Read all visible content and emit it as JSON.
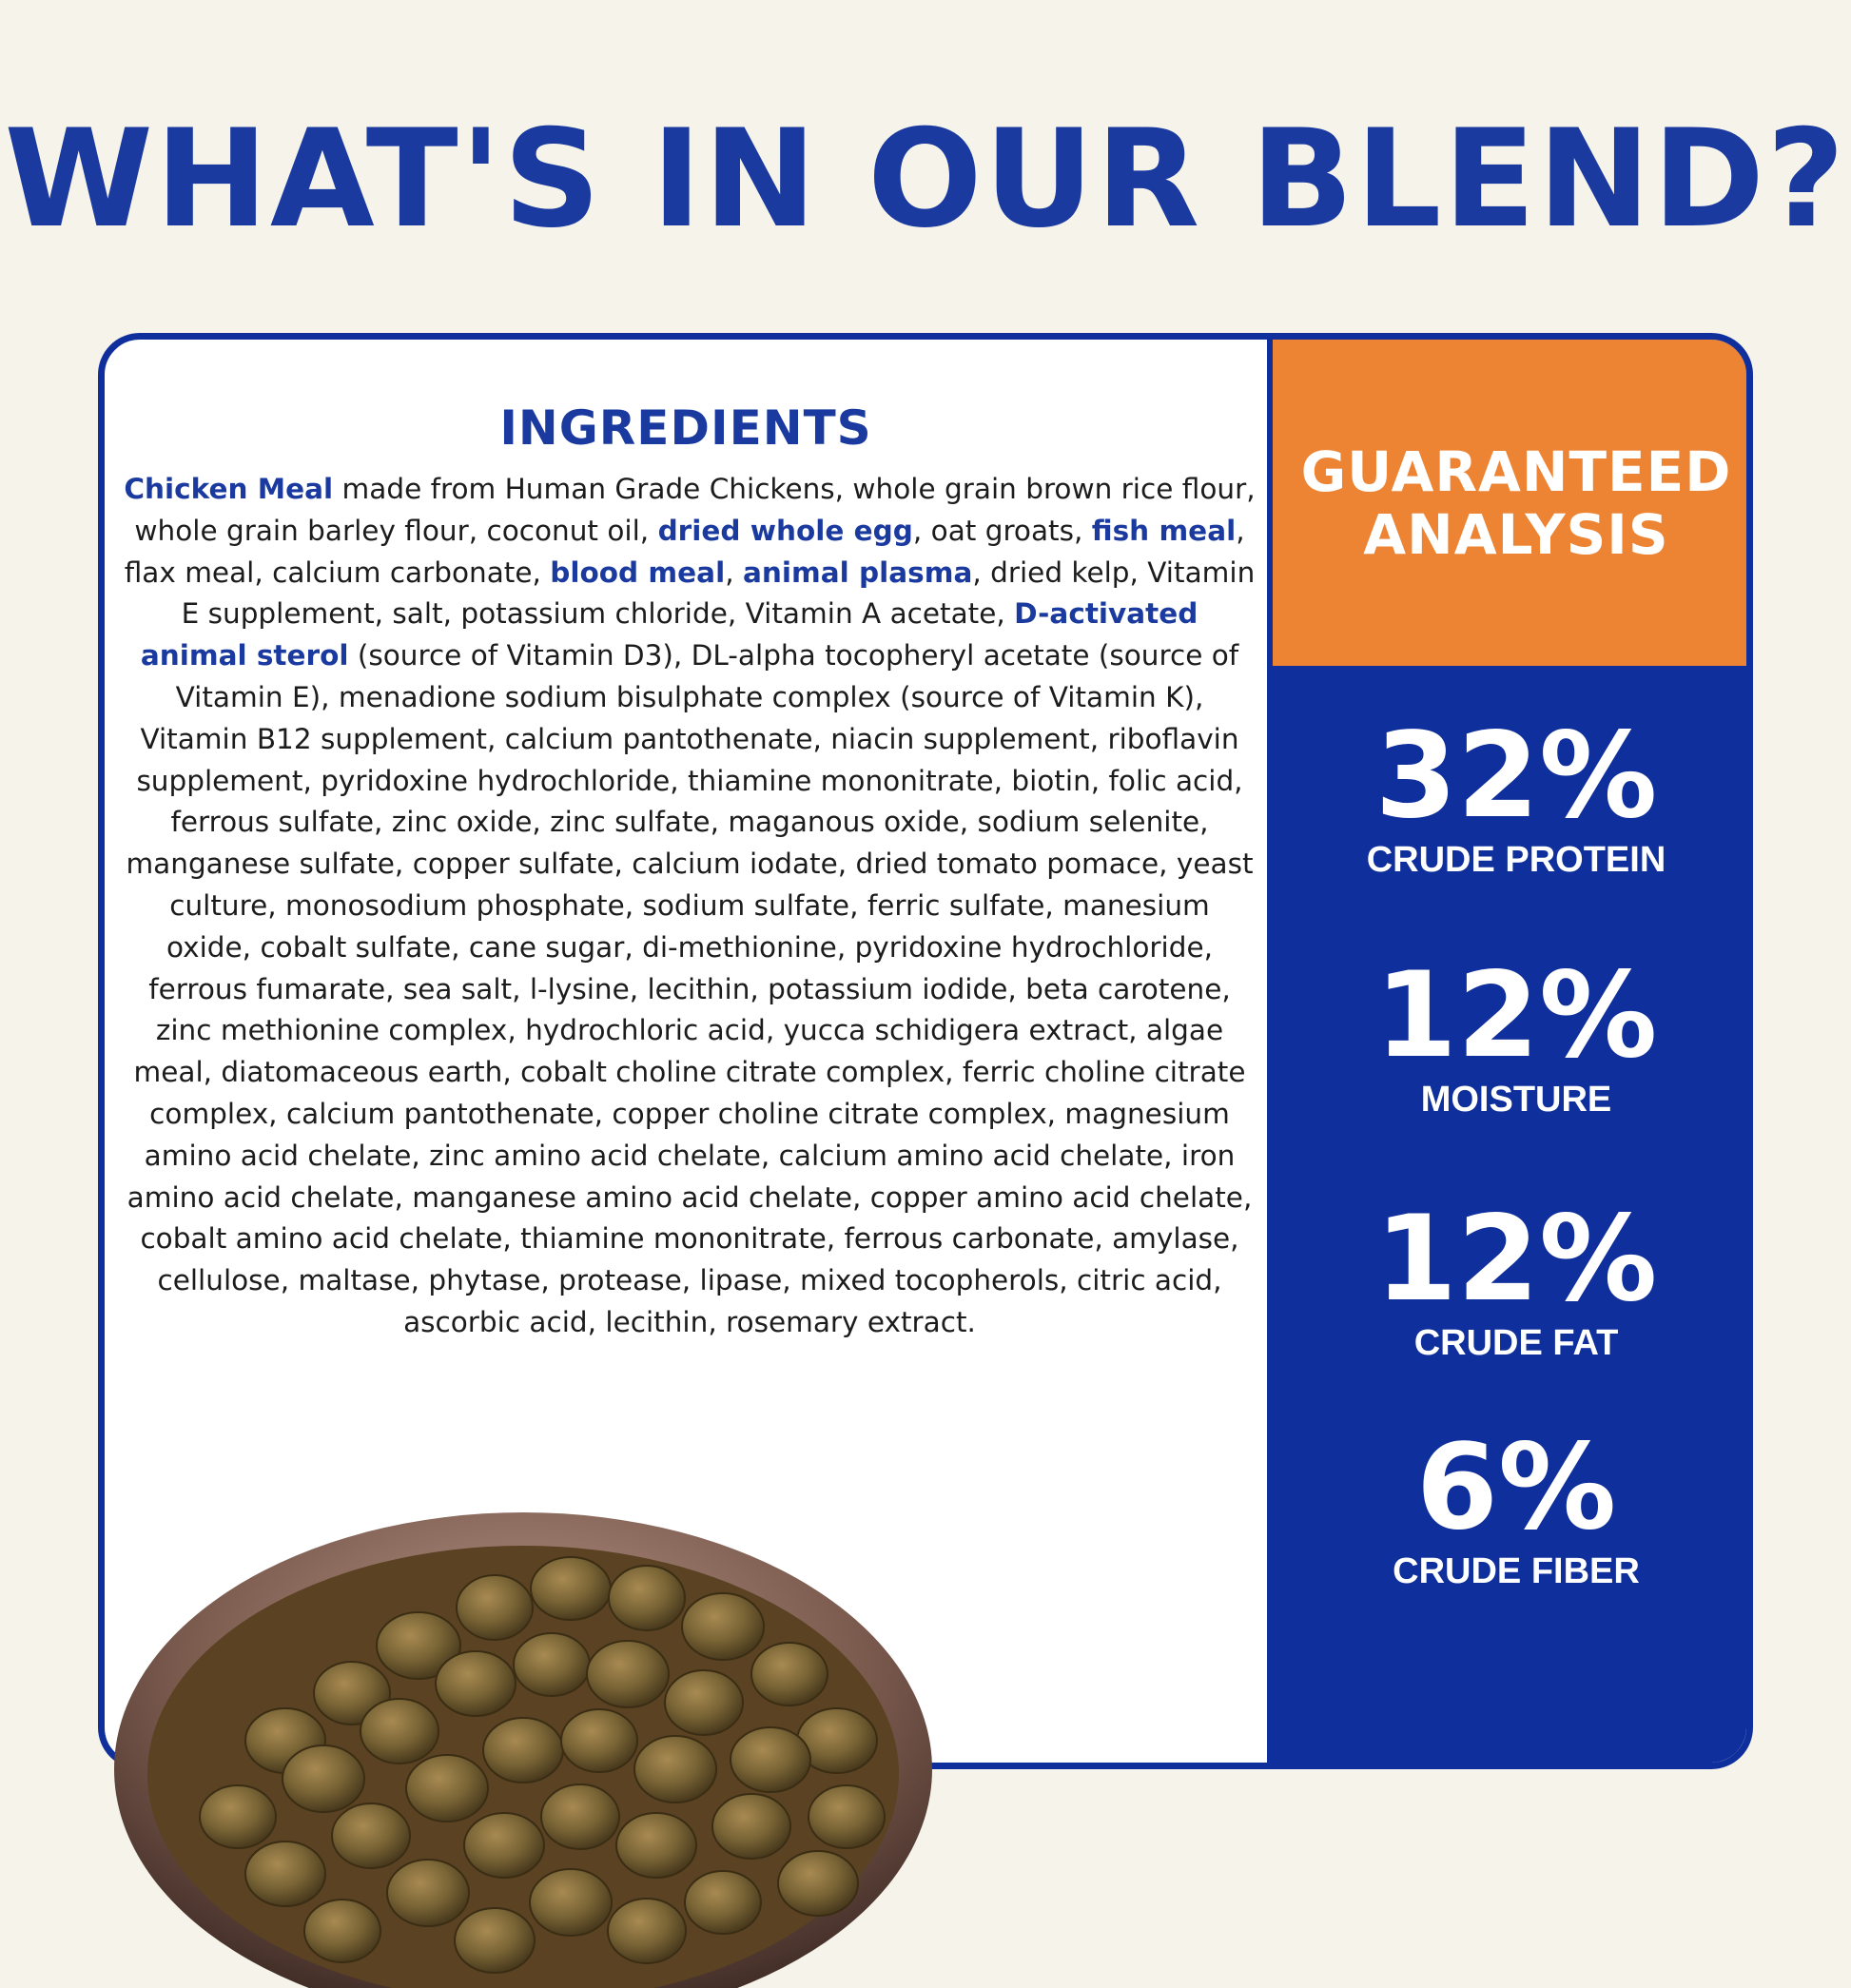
{
  "headline": "WHAT'S IN OUR BLEND?",
  "ingredients": {
    "title": "INGREDIENTS",
    "segments": [
      {
        "text": "Chicken Meal",
        "bold": true
      },
      {
        "text": " made from Human Grade Chickens, whole grain brown rice flour, whole grain barley flour, coconut oil, ",
        "bold": false
      },
      {
        "text": "dried whole egg",
        "bold": true
      },
      {
        "text": ", oat groats, ",
        "bold": false
      },
      {
        "text": "fish meal",
        "bold": true
      },
      {
        "text": ", flax meal, calcium carbonate, ",
        "bold": false
      },
      {
        "text": "blood meal",
        "bold": true
      },
      {
        "text": ", ",
        "bold": false
      },
      {
        "text": "animal plasma",
        "bold": true
      },
      {
        "text": ", dried kelp, Vitamin E supplement, salt, potassium chloride, Vitamin A acetate, ",
        "bold": false
      },
      {
        "text": "D-activated animal sterol",
        "bold": true
      },
      {
        "text": " (source of Vitamin D3), DL-alpha tocopheryl acetate (source of Vitamin E), menadione sodium bisulphate complex (source of Vitamin K), Vitamin B12 supplement, calcium pantothenate, niacin supplement, riboflavin supplement, pyridoxine hydrochloride, thiamine mononitrate, biotin, folic acid, ferrous sulfate, zinc oxide, zinc sulfate, maganous oxide, sodium selenite, manganese sulfate, copper sulfate, calcium iodate, dried tomato pomace, yeast culture, monosodium phosphate, sodium sulfate, ferric sulfate, manesium oxide, cobalt sulfate, cane sugar, di-methionine, pyridoxine hydrochloride, ferrous fumarate, sea salt, l-lysine, lecithin, potassium iodide, beta carotene, zinc methionine complex, hydrochloric acid, yucca schidigera extract, algae meal, diatomaceous earth, cobalt choline citrate complex, ferric choline citrate complex, calcium pantothenate, copper choline citrate complex, magnesium amino acid chelate, zinc amino acid chelate, calcium amino acid chelate, iron amino acid chelate, manganese amino acid chelate, copper amino acid chelate, cobalt amino acid chelate, thiamine mononitrate, ferrous carbonate, amylase, cellulose, maltase, phytase, protease, lipase, mixed tocopherols, citric acid, ascorbic acid, lecithin, rosemary extract.",
        "bold": false
      }
    ]
  },
  "analysis": {
    "title_line1": "GUARANTEED",
    "title_line2": "ANALYSIS",
    "stats": [
      {
        "value": "32%",
        "label": "CRUDE PROTEIN"
      },
      {
        "value": "12%",
        "label": "MOISTURE"
      },
      {
        "value": "12%",
        "label": "CRUDE FAT"
      },
      {
        "value": "6%",
        "label": "CRUDE FIBER"
      }
    ]
  },
  "colors": {
    "background": "#f5f3ea",
    "brand_blue": "#0f2f9c",
    "headline_blue": "#1a3aa0",
    "orange": "#ed8433",
    "white": "#ffffff"
  },
  "image": {
    "subject": "bowl-of-dry-dog-food"
  }
}
